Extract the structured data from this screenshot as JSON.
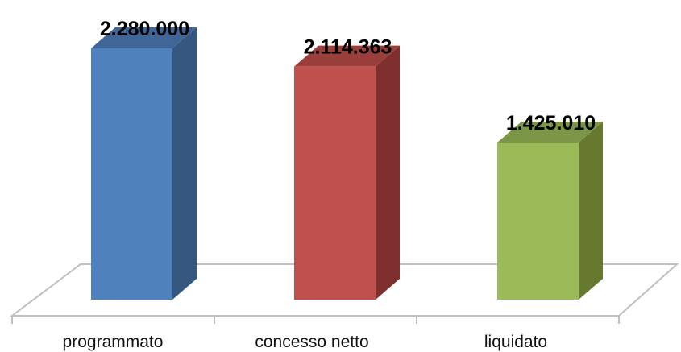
{
  "chart_data": {
    "type": "bar",
    "title": "",
    "xlabel": "",
    "ylabel": "",
    "categories": [
      "programmato",
      "concesso netto",
      "liquidato"
    ],
    "values": [
      2280000,
      2114363,
      1425010
    ],
    "value_labels": [
      "2.280.000",
      "2.114.363",
      "1.425.010"
    ],
    "colors": [
      "#4F81BD",
      "#C0504D",
      "#9BBB59"
    ],
    "side_colors": [
      "#36577F",
      "#7F302E",
      "#66792F"
    ],
    "top_colors": [
      "#3F6697",
      "#9A3E3C",
      "#7C9647"
    ],
    "ylim": [
      0,
      2280000
    ],
    "grid": false,
    "legend": "none",
    "style": "3d-column"
  }
}
